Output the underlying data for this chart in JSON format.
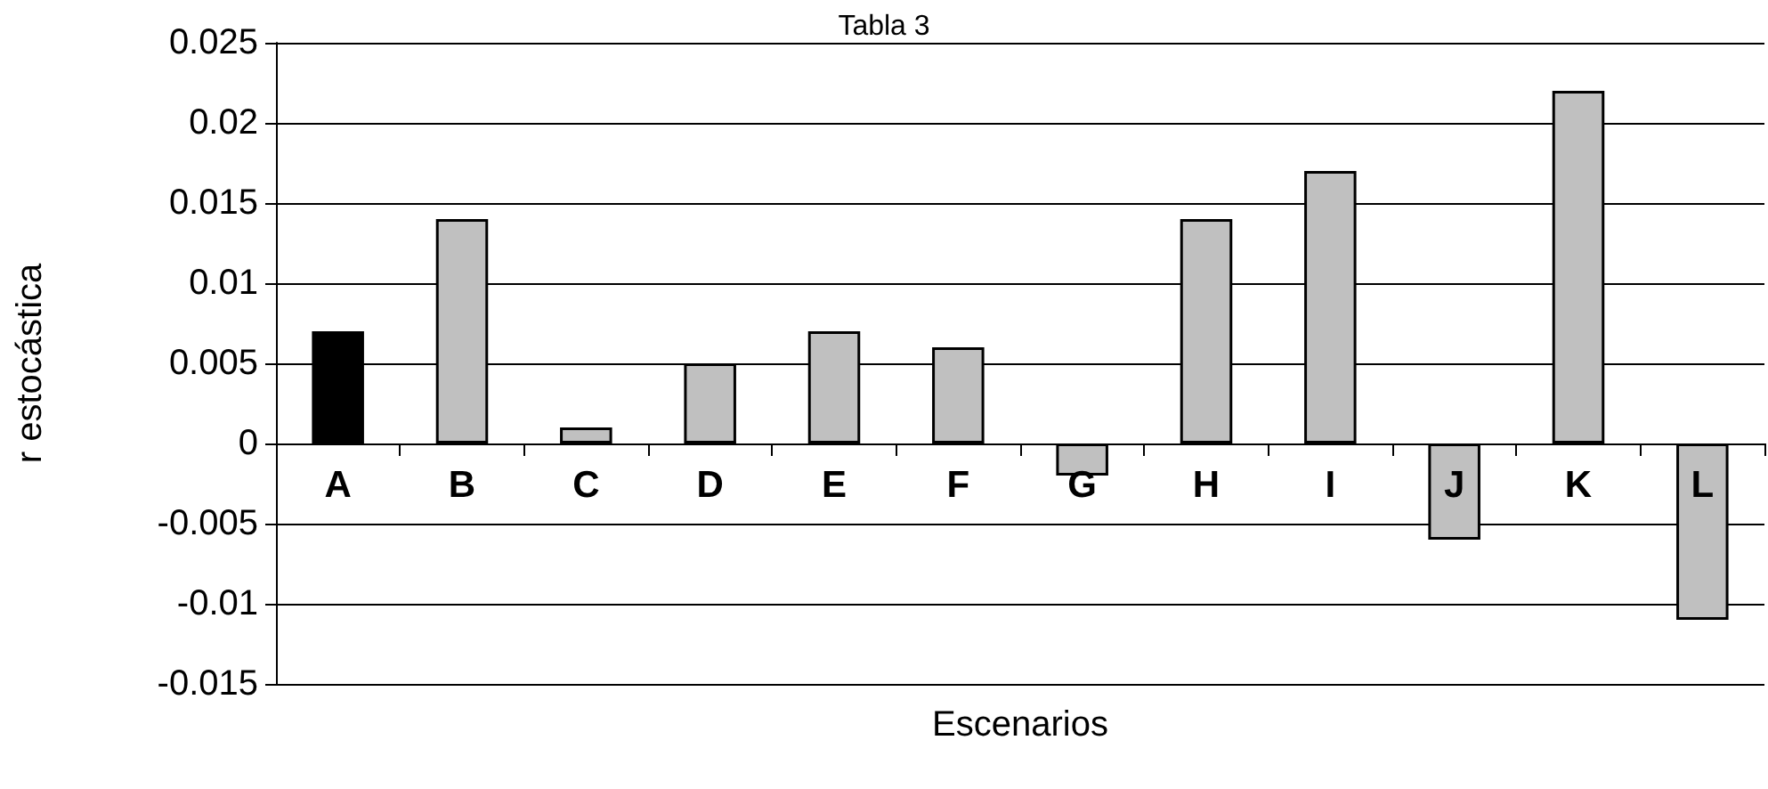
{
  "chart_data": {
    "type": "bar",
    "title": "Tabla 3",
    "xlabel": "Escenarios",
    "ylabel": "r estocástica",
    "categories": [
      "A",
      "B",
      "C",
      "D",
      "E",
      "F",
      "G",
      "H",
      "I",
      "J",
      "K",
      "L"
    ],
    "values": [
      0.007,
      0.014,
      0.001,
      0.005,
      0.007,
      0.006,
      -0.002,
      0.014,
      0.017,
      -0.006,
      0.022,
      -0.011
    ],
    "colors": [
      "#000000",
      "#c0c0c0",
      "#c0c0c0",
      "#c0c0c0",
      "#c0c0c0",
      "#c0c0c0",
      "#c0c0c0",
      "#c0c0c0",
      "#c0c0c0",
      "#c0c0c0",
      "#c0c0c0",
      "#c0c0c0"
    ],
    "ylim": [
      -0.015,
      0.025
    ],
    "yticks": [
      -0.015,
      -0.01,
      -0.005,
      0,
      0.005,
      0.01,
      0.015,
      0.02,
      0.025
    ],
    "grid": "y"
  }
}
